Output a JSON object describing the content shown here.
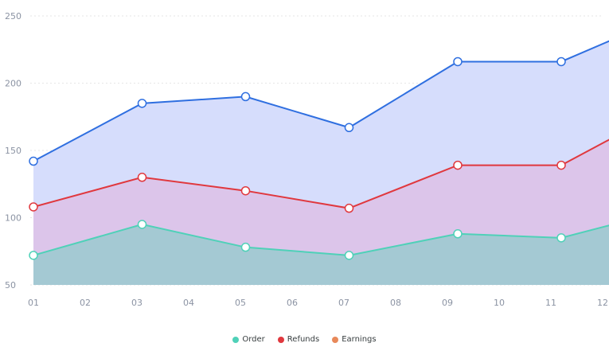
{
  "chart_data": {
    "type": "area",
    "categories": [
      "01",
      "02",
      "03",
      "04",
      "05",
      "06",
      "07",
      "08",
      "09",
      "10",
      "11",
      "12"
    ],
    "x": [
      1,
      3.1,
      5.1,
      7.1,
      9.2,
      11.2,
      13.2
    ],
    "series": [
      {
        "name": "Order",
        "color": "#4fd1b8",
        "values": [
          72,
          95,
          78,
          72,
          88,
          85,
          105
        ]
      },
      {
        "name": "Refunds",
        "color": "#e0383e",
        "values": [
          108,
          130,
          120,
          107,
          139,
          139,
          180
        ]
      },
      {
        "name": "Earnings",
        "color": "#e8895a",
        "values": [
          142,
          185,
          190,
          167,
          216,
          216,
          249
        ]
      }
    ],
    "line_colors": {
      "top_series_line": "#2f6fe0",
      "marker_fill": "#ffffff"
    },
    "fill_colors": [
      "#a4c9d3",
      "#dcc5ea",
      "#d6ddfc"
    ],
    "yticks": [
      50,
      100,
      150,
      200,
      250
    ],
    "ylim": [
      50,
      250
    ],
    "xlim": [
      1,
      12
    ],
    "grid": true,
    "legend": "bottom-center",
    "title": "",
    "xlabel": "",
    "ylabel": ""
  }
}
